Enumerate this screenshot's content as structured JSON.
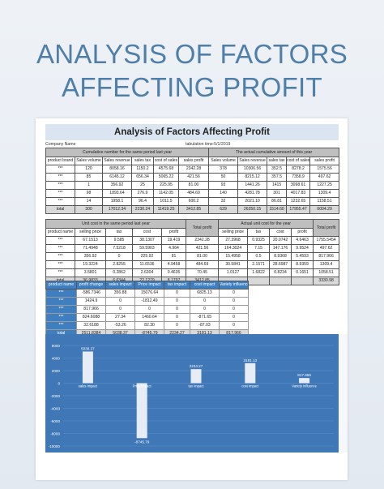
{
  "poster": {
    "title_line1": "ANALYSIS OF FACTORS",
    "title_line2": "AFFECTING PROFIT"
  },
  "sheet": {
    "title": "Analysis of Factors Affecting Profit",
    "company_label": "Company Name",
    "tabulation_label": "tabulation time:5/1/2019"
  },
  "table1": {
    "group_left": "Cumulative number for the same period last year",
    "group_right": "The actual cumulative amount of this year",
    "headers": [
      "product brand",
      "Sales volume",
      "Sales revenue",
      "sales tax",
      "cost of sales",
      "sales profit",
      "Sales volume",
      "Sales revenue",
      "sales tax",
      "cost of sales",
      "sales profit"
    ],
    "rows": [
      [
        "***",
        "120",
        "8058.16",
        "1150.2",
        "4575.68",
        "2342.28",
        "378",
        "10306.56",
        "352.5",
        "8278.2",
        "1575.56"
      ],
      [
        "***",
        "85",
        "6145.12",
        "656.34",
        "5065.22",
        "421.56",
        "50",
        "8215.12",
        "357.5",
        "7358.9",
        "497.62"
      ],
      [
        "***",
        "1",
        "356.92",
        "25",
        "225.95",
        "81.00",
        "93",
        "1441.26",
        "1415",
        "3098.61",
        "1227.25"
      ],
      [
        "***",
        "98",
        "1893.64",
        "276.9",
        "1142.05",
        "484.69",
        "140",
        "4281.78",
        "301",
        "4017.83",
        "1309.4"
      ],
      [
        "***",
        "14",
        "1958.1",
        "96.4",
        "1011.5",
        "600.2",
        "32",
        "2021.10",
        "86.81",
        "1232.65",
        "1158.51"
      ]
    ],
    "total": [
      "total",
      "300",
      "17012.34",
      "2230.24",
      "11419.25",
      "3412.85",
      "629",
      "26250.15",
      "1514.60",
      "17955.47",
      "6004.29"
    ]
  },
  "table2": {
    "group_left": "Unit cost in the same period last year",
    "group_right": "Actual unit cost for the year",
    "total_profit_label": "Total profit",
    "headers": [
      "product name",
      "selling price",
      "tax",
      "cost",
      "profit",
      "selling price",
      "tax",
      "cost",
      "profit"
    ],
    "rows": [
      [
        "***",
        "67.1513",
        "9.585",
        "38.1307",
        "19.419",
        "2342.28",
        "27.3968",
        "0.9325",
        "20.0742",
        "4.6463",
        "1755.5454"
      ],
      [
        "***",
        "71.4948",
        "7.5218",
        "59.5903",
        "4.964",
        "421.56",
        "164.3024",
        "7.15",
        "147.176",
        "9.9524",
        "497.62"
      ],
      [
        "***",
        "356.92",
        "0",
        "225.92",
        "81",
        "81.00",
        "15.4958",
        "0.5",
        "8.9368",
        "5.4593",
        "817.966"
      ],
      [
        "***",
        "19.3224",
        "2.8255",
        "11.6536",
        "4.9458",
        "484.69",
        "30.5841",
        "2.1571",
        "28.6987",
        "8.9359",
        "1309.4"
      ],
      [
        "***",
        "3.5801",
        "0.2862",
        "2.6304",
        "0.4635",
        "70.45",
        "1.0127",
        "1.6822",
        "0.8234",
        "0.1651",
        "1058.51"
      ]
    ],
    "total": [
      "total",
      "36.9833",
      "6.6344",
      "22.1279",
      "8.1797",
      "3412.85",
      "",
      "",
      "",
      "",
      "3330.98"
    ]
  },
  "table3": {
    "headers": [
      "product name",
      "profit change",
      "sales impact",
      "Price impact",
      "tax impact",
      "cost impact",
      "Variety influence"
    ],
    "rows": [
      [
        "***",
        "-586.7346",
        "356.88",
        "15076.64",
        "0",
        "6825.13",
        "0"
      ],
      [
        "***",
        "1424.9",
        "0",
        "-1812.49",
        "0",
        "0",
        "0"
      ],
      [
        "***",
        "817.966",
        "0",
        "0",
        "0",
        "0",
        "0"
      ],
      [
        "***",
        "824.6088",
        "27.34",
        "1460.64",
        "0",
        "-871.65",
        "0"
      ],
      [
        "***",
        "32.6188",
        "-53.26",
        "82.30",
        "0",
        "-87.03",
        "0"
      ]
    ],
    "total": [
      "total",
      "2511.8384",
      "5038.37",
      "-8745.79",
      "2234.27",
      "3181.13",
      "817.966"
    ]
  },
  "chart_data": {
    "type": "bar",
    "categories": [
      "sales impact",
      "Price impact",
      "tax impact",
      "cost impact",
      "Variety influence"
    ],
    "values": [
      5038.37,
      -8745.79,
      2234.27,
      3181.13,
      817.966
    ],
    "data_labels": [
      "5038.37",
      "-8745.79",
      "2234.27",
      "3181.13",
      "817.966"
    ],
    "ylim": [
      -10000,
      6000
    ],
    "ticks": [
      "6000",
      "4000",
      "2000",
      "0",
      "-2000",
      "-4000",
      "-6000",
      "-8000",
      "-10000"
    ],
    "tick_values": [
      6000,
      4000,
      2000,
      0,
      -2000,
      -4000,
      -6000,
      -8000,
      -10000
    ],
    "grid": true,
    "colors": {
      "background": "#3f77b7",
      "bar": "#e6edf6",
      "text": "#ffffff",
      "grid": "#6a97c8"
    }
  }
}
